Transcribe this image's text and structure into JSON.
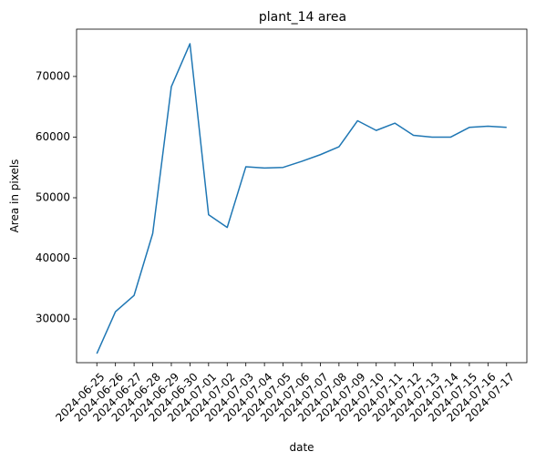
{
  "chart_data": {
    "type": "line",
    "title": "plant_14 area",
    "xlabel": "date",
    "ylabel": "Area in pixels",
    "grid": false,
    "legend": "none",
    "line_color": "#1f77b4",
    "ylim": [
      22800,
      77800
    ],
    "yticks": [
      30000,
      40000,
      50000,
      60000,
      70000
    ],
    "yticklabels": [
      "30000",
      "40000",
      "50000",
      "60000",
      "70000"
    ],
    "x": [
      "2024-06-25",
      "2024-06-26",
      "2024-06-27",
      "2024-06-28",
      "2024-06-29",
      "2024-06-30",
      "2024-07-01",
      "2024-07-02",
      "2024-07-03",
      "2024-07-04",
      "2024-07-05",
      "2024-07-06",
      "2024-07-07",
      "2024-07-08",
      "2024-07-09",
      "2024-07-10",
      "2024-07-11",
      "2024-07-12",
      "2024-07-13",
      "2024-07-14",
      "2024-07-15",
      "2024-07-16",
      "2024-07-17"
    ],
    "series": [
      {
        "values": [
          24300,
          31200,
          33900,
          44100,
          68300,
          75400,
          47200,
          45100,
          55100,
          54900,
          55000,
          56000,
          57100,
          58400,
          62700,
          61100,
          62300,
          60300,
          60000,
          60000,
          61600,
          61800,
          61600
        ]
      }
    ]
  }
}
